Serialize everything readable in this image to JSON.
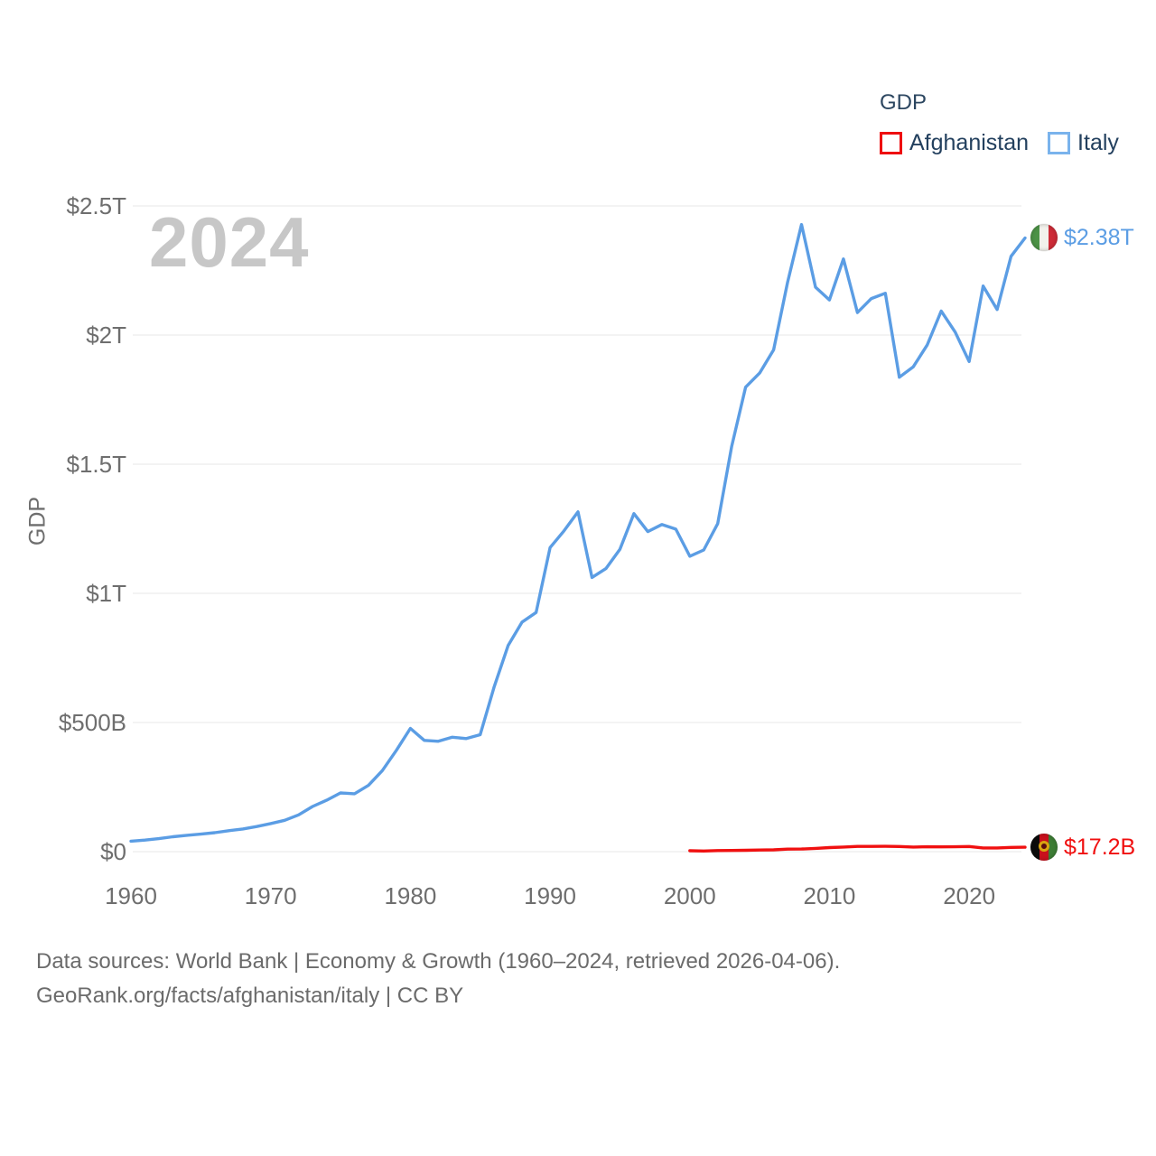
{
  "watermark": "2024",
  "legend": {
    "title": "GDP",
    "items": [
      {
        "label": "Afghanistan",
        "color": "#ee0d10"
      },
      {
        "label": "Italy",
        "color": "#7ab3ec"
      }
    ]
  },
  "chart_data": {
    "type": "line",
    "title": "GDP",
    "ylabel": "GDP",
    "xlabel": "",
    "grid": true,
    "legend_position": "top-right",
    "xlim": [
      1960,
      2024
    ],
    "ylim_billions": [
      0,
      2500
    ],
    "x_tick_years": [
      1960,
      1970,
      1980,
      1990,
      2000,
      2010,
      2020
    ],
    "y_ticks": [
      {
        "value_billions": 0,
        "label": "$0"
      },
      {
        "value_billions": 500,
        "label": "$500B"
      },
      {
        "value_billions": 1000,
        "label": "$1T"
      },
      {
        "value_billions": 1500,
        "label": "$1.5T"
      },
      {
        "value_billions": 2000,
        "label": "$2T"
      },
      {
        "value_billions": 2500,
        "label": "$2.5T"
      }
    ],
    "series": [
      {
        "name": "Afghanistan",
        "color": "#f01010",
        "end_label": "$17.2B",
        "flag_icon": "afghanistan-flag",
        "years": [
          2000,
          2001,
          2002,
          2003,
          2004,
          2005,
          2006,
          2007,
          2008,
          2009,
          2010,
          2011,
          2012,
          2013,
          2014,
          2015,
          2016,
          2017,
          2018,
          2019,
          2020,
          2021,
          2022,
          2023,
          2024
        ],
        "gdp_billions": [
          3.5,
          2.5,
          4.1,
          4.6,
          5.3,
          6.3,
          7.1,
          9.8,
          10.2,
          12.5,
          15.9,
          17.9,
          20.3,
          20.2,
          20.6,
          19.9,
          18.0,
          18.9,
          18.4,
          18.9,
          20.1,
          14.3,
          14.5,
          16.6,
          17.2
        ]
      },
      {
        "name": "Italy",
        "color": "#5b9de4",
        "end_label": "$2.38T",
        "flag_icon": "italy-flag",
        "years": [
          1960,
          1961,
          1962,
          1963,
          1964,
          1965,
          1966,
          1967,
          1968,
          1969,
          1970,
          1971,
          1972,
          1973,
          1974,
          1975,
          1976,
          1977,
          1978,
          1979,
          1980,
          1981,
          1982,
          1983,
          1984,
          1985,
          1986,
          1987,
          1988,
          1989,
          1990,
          1991,
          1992,
          1993,
          1994,
          1995,
          1996,
          1997,
          1998,
          1999,
          2000,
          2001,
          2002,
          2003,
          2004,
          2005,
          2006,
          2007,
          2008,
          2009,
          2010,
          2011,
          2012,
          2013,
          2014,
          2015,
          2016,
          2017,
          2018,
          2019,
          2020,
          2021,
          2022,
          2023,
          2024
        ],
        "gdp_billions": [
          40.4,
          44.8,
          50.4,
          57.6,
          63.2,
          67.9,
          73.6,
          81.1,
          87.9,
          97.1,
          108.9,
          121.2,
          142.3,
          174.7,
          198.9,
          227.4,
          224.0,
          256.7,
          314.0,
          392.4,
          477.3,
          430.7,
          427.3,
          442.9,
          437.9,
          452.7,
          638.4,
          798.6,
          888.9,
          925.8,
          1177.3,
          1242.1,
          1315.8,
          1061.4,
          1095.7,
          1170.7,
          1308.9,
          1239.1,
          1266.3,
          1248.6,
          1143.8,
          1167.9,
          1270.1,
          1569.7,
          1798.3,
          1852.7,
          1942.6,
          2203.1,
          2428.0,
          2185.2,
          2136.1,
          2294.6,
          2086.9,
          2141.2,
          2162.0,
          1836.6,
          1877.1,
          1961.8,
          2092.9,
          2011.3,
          1897.5,
          2190.0,
          2099.0,
          2305.0,
          2376.0
        ]
      }
    ]
  },
  "footer": {
    "line1": "Data sources: World Bank | Economy & Growth (1960–2024, retrieved 2026-04-06).",
    "line2": "GeoRank.org/facts/afghanistan/italy | CC BY"
  }
}
